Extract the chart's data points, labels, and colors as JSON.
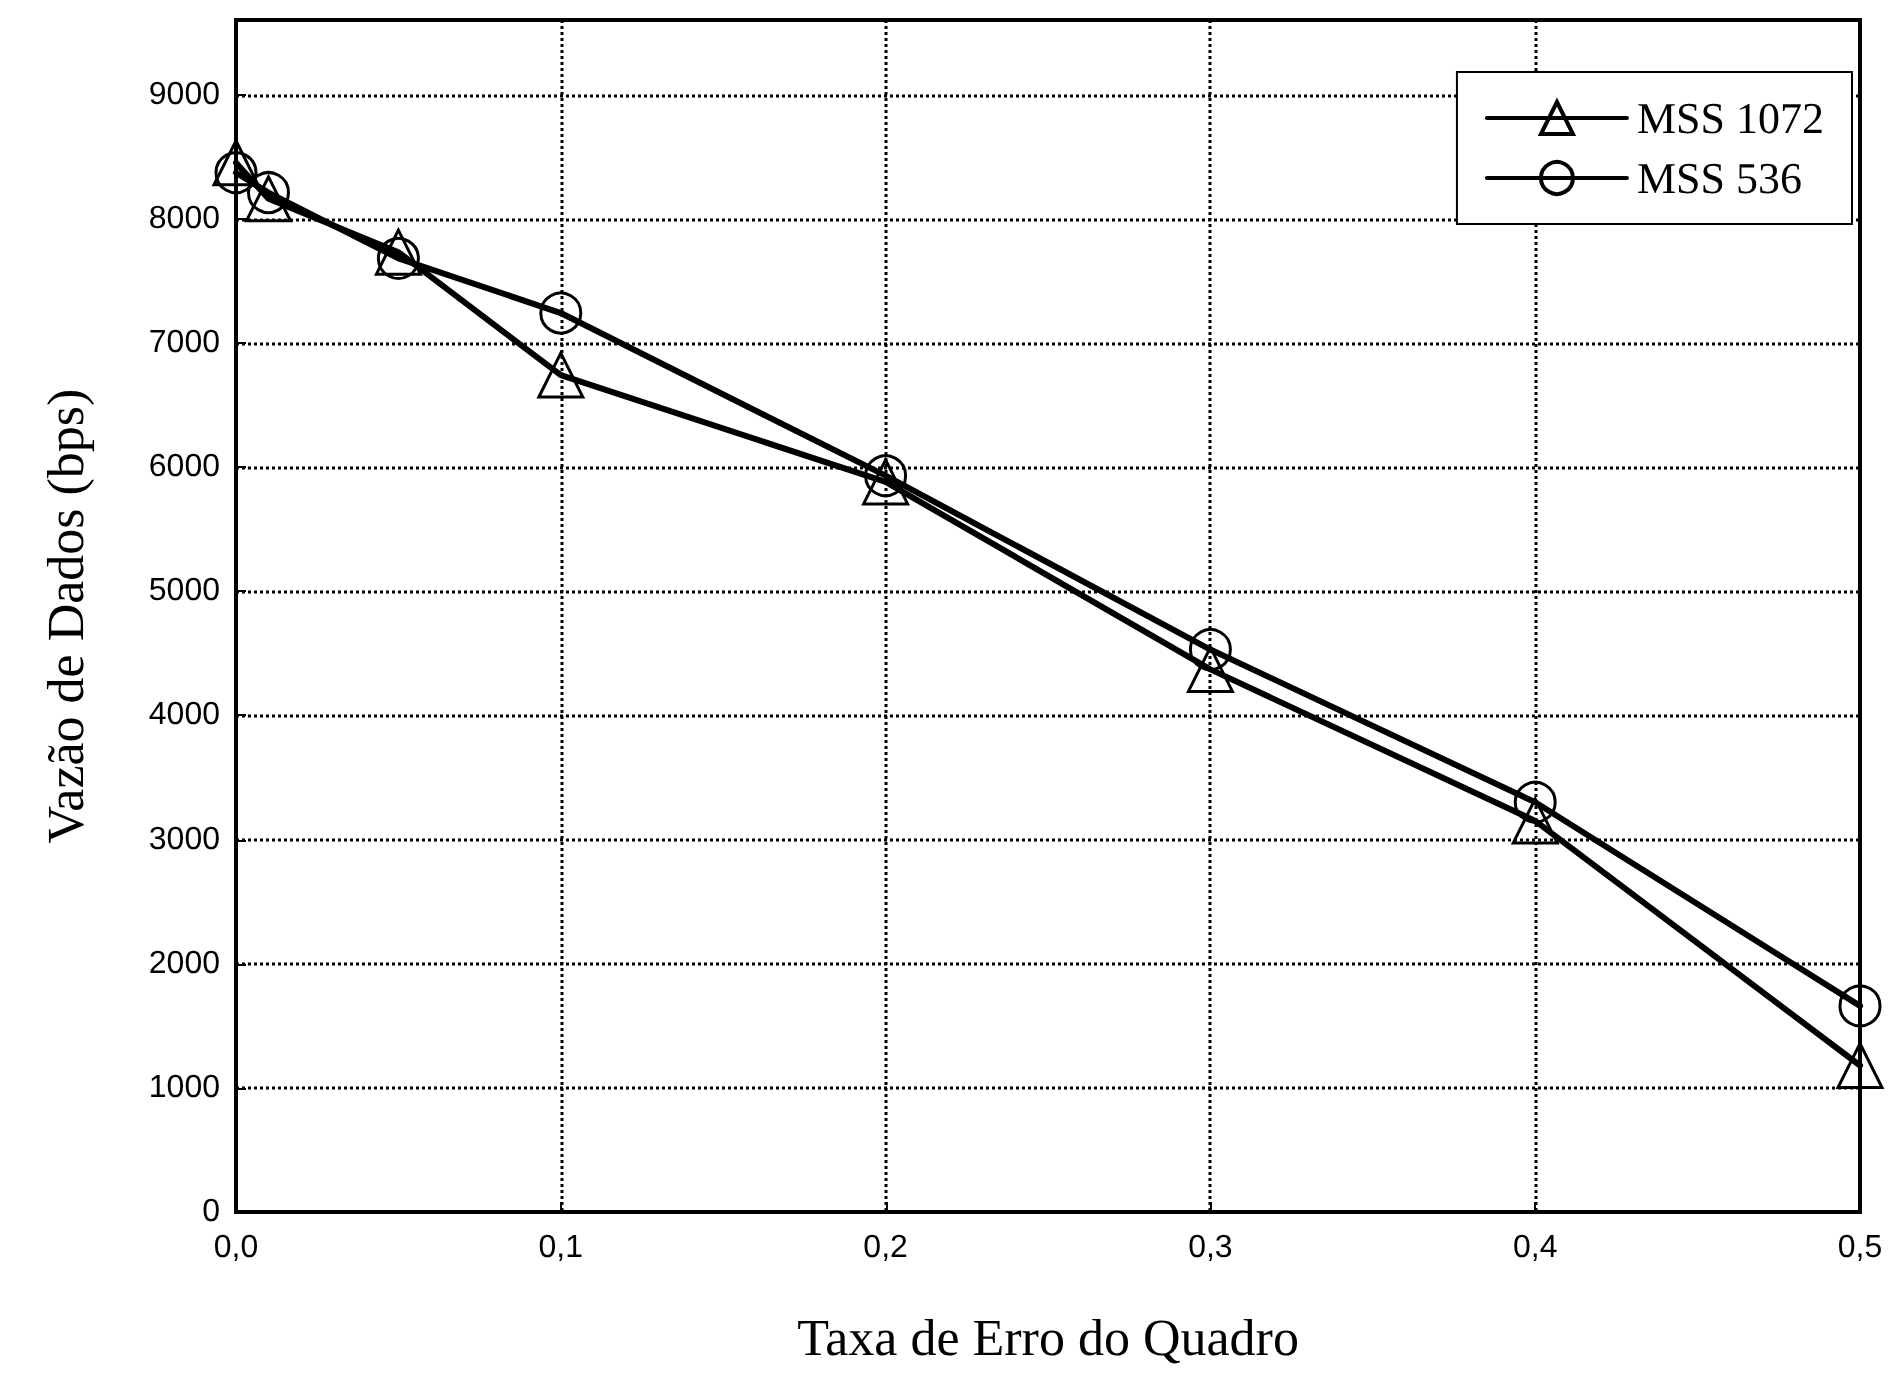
{
  "chart_data": {
    "type": "line",
    "xlabel": "Taxa de Erro do Quadro",
    "ylabel": "Vazão de Dados (bps)",
    "x": [
      0,
      0.01,
      0.05,
      0.1,
      0.2,
      0.3,
      0.4,
      0.5
    ],
    "series": [
      {
        "name": "MSS 1072",
        "color": "#000000",
        "marker": "triangle",
        "values": [
          8450,
          8160,
          7730,
          6740,
          5880,
          4370,
          3150,
          1180
        ]
      },
      {
        "name": "MSS 536",
        "color": "#000000",
        "marker": "circle",
        "values": [
          8370,
          8210,
          7680,
          7240,
          5930,
          4530,
          3300,
          1660
        ]
      }
    ],
    "xlim": [
      0,
      0.5
    ],
    "xticks": [
      {
        "value": 0,
        "label": "0,0"
      },
      {
        "value": 0.1,
        "label": "0,1"
      },
      {
        "value": 0.2,
        "label": "0,2"
      },
      {
        "value": 0.3,
        "label": "0,3"
      },
      {
        "value": 0.4,
        "label": "0,4"
      },
      {
        "value": 0.5,
        "label": "0,5"
      }
    ],
    "ylim": [
      0,
      9600
    ],
    "yticks": [
      0,
      1000,
      2000,
      3000,
      4000,
      5000,
      6000,
      7000,
      8000,
      9000
    ],
    "grid": true,
    "legend": "top right",
    "line_style": "solid"
  }
}
